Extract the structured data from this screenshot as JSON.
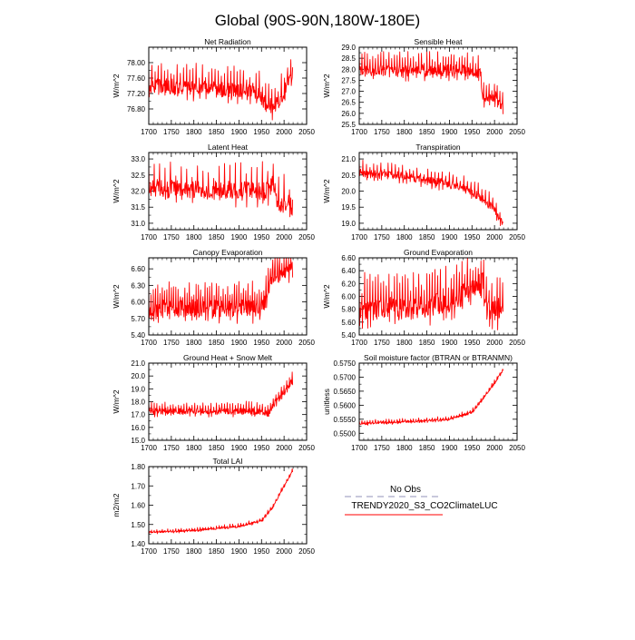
{
  "figure": {
    "title": "Global (90S-90N,180W-180E)"
  },
  "legend": {
    "entries": [
      {
        "label": "No Obs",
        "color": "#a7a7c7",
        "style": "dashed"
      },
      {
        "label": "TRENDY2020_S3_CO2ClimateLUC",
        "color": "#ff0000",
        "style": "solid"
      }
    ]
  },
  "chart_data": [
    {
      "type": "line",
      "title": "Net Radiation",
      "xlabel": "",
      "ylabel": "W/m^2",
      "xlim": [
        1700,
        2050
      ],
      "ylim": [
        76.4,
        78.4
      ],
      "xticks": [
        1700,
        1750,
        1800,
        1850,
        1900,
        1950,
        2000,
        2050
      ],
      "xtick_labels": [
        "1700",
        "1750",
        "1800",
        "1850",
        "1900",
        "1950",
        "2000",
        "2050"
      ],
      "yticks": [
        76.8,
        77.2,
        77.6,
        78.0
      ],
      "ytick_labels": [
        "76.80",
        "77.20",
        "77.60",
        "78.00"
      ],
      "series": [
        {
          "name": "TRENDY2020_S3_CO2ClimateLUC",
          "color": "#ff0000",
          "x_start": 1700,
          "x_end": 2019,
          "anchors": [
            [
              1700,
              77.45
            ],
            [
              1800,
              77.4
            ],
            [
              1900,
              77.3
            ],
            [
              1940,
              77.25
            ],
            [
              1960,
              77.0
            ],
            [
              1975,
              76.9
            ],
            [
              1990,
              77.05
            ],
            [
              2000,
              77.25
            ],
            [
              2010,
              77.6
            ],
            [
              2019,
              77.8
            ]
          ],
          "amplitude": 0.45,
          "cycle_years": 7
        }
      ]
    },
    {
      "type": "line",
      "title": "Sensible Heat",
      "xlabel": "",
      "ylabel": "W/m^2",
      "xlim": [
        1700,
        2050
      ],
      "ylim": [
        25.5,
        29.0
      ],
      "xticks": [
        1700,
        1750,
        1800,
        1850,
        1900,
        1950,
        2000,
        2050
      ],
      "xtick_labels": [
        "1700",
        "1750",
        "1800",
        "1850",
        "1900",
        "1950",
        "2000",
        "2050"
      ],
      "yticks": [
        25.5,
        26.0,
        26.5,
        27.0,
        27.5,
        28.0,
        28.5,
        29.0
      ],
      "ytick_labels": [
        "25.5",
        "26.0",
        "26.5",
        "27.0",
        "27.5",
        "28.0",
        "28.5",
        "29.0"
      ],
      "series": [
        {
          "name": "TRENDY2020_S3_CO2ClimateLUC",
          "color": "#ff0000",
          "x_start": 1700,
          "x_end": 2019,
          "anchors": [
            [
              1700,
              28.0
            ],
            [
              1950,
              28.0
            ],
            [
              1968,
              27.9
            ],
            [
              1975,
              26.8
            ],
            [
              1990,
              26.7
            ],
            [
              2005,
              26.8
            ],
            [
              2019,
              26.3
            ]
          ],
          "amplitude": 0.6,
          "cycle_years": 6
        }
      ]
    },
    {
      "type": "line",
      "title": "Latent Heat",
      "xlabel": "",
      "ylabel": "W/m^2",
      "xlim": [
        1700,
        2050
      ],
      "ylim": [
        30.8,
        33.2
      ],
      "xticks": [
        1700,
        1750,
        1800,
        1850,
        1900,
        1950,
        2000,
        2050
      ],
      "xtick_labels": [
        "1700",
        "1750",
        "1800",
        "1850",
        "1900",
        "1950",
        "2000",
        "2050"
      ],
      "yticks": [
        31.0,
        31.5,
        32.0,
        32.5,
        33.0
      ],
      "ytick_labels": [
        "31.0",
        "31.5",
        "32.0",
        "32.5",
        "33.0"
      ],
      "series": [
        {
          "name": "TRENDY2020_S3_CO2ClimateLUC",
          "color": "#ff0000",
          "x_start": 1700,
          "x_end": 2019,
          "anchors": [
            [
              1700,
              32.15
            ],
            [
              1950,
              32.05
            ],
            [
              1965,
              32.1
            ],
            [
              1975,
              32.25
            ],
            [
              1990,
              31.6
            ],
            [
              2005,
              31.75
            ],
            [
              2019,
              31.55
            ]
          ],
          "amplitude": 0.65,
          "cycle_years": 12
        }
      ]
    },
    {
      "type": "line",
      "title": "Transpiration",
      "xlabel": "",
      "ylabel": "W/m^2",
      "xlim": [
        1700,
        2050
      ],
      "ylim": [
        18.8,
        21.2
      ],
      "xticks": [
        1700,
        1750,
        1800,
        1850,
        1900,
        1950,
        2000,
        2050
      ],
      "xtick_labels": [
        "1700",
        "1750",
        "1800",
        "1850",
        "1900",
        "1950",
        "2000",
        "2050"
      ],
      "yticks": [
        19.0,
        19.5,
        20.0,
        20.5,
        21.0
      ],
      "ytick_labels": [
        "19.0",
        "19.5",
        "20.0",
        "20.5",
        "21.0"
      ],
      "series": [
        {
          "name": "TRENDY2020_S3_CO2ClimateLUC",
          "color": "#ff0000",
          "x_start": 1700,
          "x_end": 2019,
          "anchors": [
            [
              1700,
              20.6
            ],
            [
              1800,
              20.5
            ],
            [
              1850,
              20.35
            ],
            [
              1900,
              20.25
            ],
            [
              1950,
              20.0
            ],
            [
              1980,
              19.7
            ],
            [
              2000,
              19.45
            ],
            [
              2019,
              19.05
            ]
          ],
          "amplitude": 0.3,
          "cycle_years": 8
        }
      ]
    },
    {
      "type": "line",
      "title": "Canopy Evaporation",
      "xlabel": "",
      "ylabel": "W/m^2",
      "xlim": [
        1700,
        2050
      ],
      "ylim": [
        5.4,
        6.8
      ],
      "xticks": [
        1700,
        1750,
        1800,
        1850,
        1900,
        1950,
        2000,
        2050
      ],
      "xtick_labels": [
        "1700",
        "1750",
        "1800",
        "1850",
        "1900",
        "1950",
        "2000",
        "2050"
      ],
      "yticks": [
        5.4,
        5.7,
        6.0,
        6.3,
        6.6
      ],
      "ytick_labels": [
        "5.40",
        "5.70",
        "6.00",
        "6.30",
        "6.60"
      ],
      "series": [
        {
          "name": "TRENDY2020_S3_CO2ClimateLUC",
          "color": "#ff0000",
          "x_start": 1700,
          "x_end": 2019,
          "anchors": [
            [
              1700,
              5.92
            ],
            [
              1950,
              5.92
            ],
            [
              1960,
              6.05
            ],
            [
              1975,
              6.5
            ],
            [
              2000,
              6.55
            ],
            [
              2019,
              6.62
            ]
          ],
          "amplitude": 0.35,
          "cycle_years": 5
        }
      ]
    },
    {
      "type": "line",
      "title": "Ground Evaporation",
      "xlabel": "",
      "ylabel": "W/m^2",
      "xlim": [
        1700,
        2050
      ],
      "ylim": [
        5.4,
        6.6
      ],
      "xticks": [
        1700,
        1750,
        1800,
        1850,
        1900,
        1950,
        2000,
        2050
      ],
      "xtick_labels": [
        "1700",
        "1750",
        "1800",
        "1850",
        "1900",
        "1950",
        "2000",
        "2050"
      ],
      "yticks": [
        5.4,
        5.6,
        5.8,
        6.0,
        6.2,
        6.4,
        6.6
      ],
      "ytick_labels": [
        "5.40",
        "5.60",
        "5.80",
        "6.00",
        "6.20",
        "6.40",
        "6.60"
      ],
      "series": [
        {
          "name": "TRENDY2020_S3_CO2ClimateLUC",
          "color": "#ff0000",
          "x_start": 1700,
          "x_end": 2019,
          "anchors": [
            [
              1700,
              5.85
            ],
            [
              1800,
              5.85
            ],
            [
              1900,
              5.95
            ],
            [
              1950,
              6.15
            ],
            [
              1975,
              6.25
            ],
            [
              1985,
              5.85
            ],
            [
              2000,
              5.8
            ],
            [
              2019,
              5.9
            ]
          ],
          "amplitude": 0.4,
          "cycle_years": 6
        }
      ]
    },
    {
      "type": "line",
      "title": "Ground Heat + Snow Melt",
      "xlabel": "",
      "ylabel": "W/m^2",
      "xlim": [
        1700,
        2050
      ],
      "ylim": [
        15.0,
        21.0
      ],
      "xticks": [
        1700,
        1750,
        1800,
        1850,
        1900,
        1950,
        2000,
        2050
      ],
      "xtick_labels": [
        "1700",
        "1750",
        "1800",
        "1850",
        "1900",
        "1950",
        "2000",
        "2050"
      ],
      "yticks": [
        15.0,
        16.0,
        17.0,
        18.0,
        19.0,
        20.0,
        21.0
      ],
      "ytick_labels": [
        "15.0",
        "16.0",
        "17.0",
        "18.0",
        "19.0",
        "20.0",
        "21.0"
      ],
      "series": [
        {
          "name": "TRENDY2020_S3_CO2ClimateLUC",
          "color": "#ff0000",
          "x_start": 1700,
          "x_end": 2019,
          "anchors": [
            [
              1700,
              17.3
            ],
            [
              1950,
              17.3
            ],
            [
              1965,
              17.1
            ],
            [
              1980,
              18.0
            ],
            [
              2000,
              18.8
            ],
            [
              2019,
              19.7
            ]
          ],
          "amplitude": 0.55,
          "cycle_years": 6
        }
      ]
    },
    {
      "type": "line",
      "title": "Soil moisture factor (BTRAN or BTRANMN)",
      "xlabel": "",
      "ylabel": "unitless",
      "xlim": [
        1700,
        2050
      ],
      "ylim": [
        0.5475,
        0.575
      ],
      "xticks": [
        1700,
        1750,
        1800,
        1850,
        1900,
        1950,
        2000,
        2050
      ],
      "xtick_labels": [
        "1700",
        "1750",
        "1800",
        "1850",
        "1900",
        "1950",
        "2000",
        "2050"
      ],
      "yticks": [
        0.55,
        0.555,
        0.56,
        0.565,
        0.57,
        0.575
      ],
      "ytick_labels": [
        "0.5500",
        "0.5550",
        "0.5600",
        "0.5650",
        "0.5700",
        "0.5750"
      ],
      "series": [
        {
          "name": "TRENDY2020_S3_CO2ClimateLUC",
          "color": "#ff0000",
          "x_start": 1700,
          "x_end": 2019,
          "anchors": [
            [
              1700,
              0.5535
            ],
            [
              1850,
              0.5545
            ],
            [
              1900,
              0.555
            ],
            [
              1950,
              0.5575
            ],
            [
              1980,
              0.5635
            ],
            [
              2000,
              0.568
            ],
            [
              2019,
              0.5725
            ]
          ],
          "amplitude": 0.0009,
          "cycle_years": 6
        }
      ]
    },
    {
      "type": "line",
      "title": "Total LAI",
      "xlabel": "",
      "ylabel": "m2/m2",
      "xlim": [
        1700,
        2050
      ],
      "ylim": [
        1.4,
        1.8
      ],
      "xticks": [
        1700,
        1750,
        1800,
        1850,
        1900,
        1950,
        2000,
        2050
      ],
      "xtick_labels": [
        "1700",
        "1750",
        "1800",
        "1850",
        "1900",
        "1950",
        "2000",
        "2050"
      ],
      "yticks": [
        1.4,
        1.5,
        1.6,
        1.7,
        1.8
      ],
      "ytick_labels": [
        "1.40",
        "1.50",
        "1.60",
        "1.70",
        "1.80"
      ],
      "series": [
        {
          "name": "TRENDY2020_S3_CO2ClimateLUC",
          "color": "#ff0000",
          "x_start": 1700,
          "x_end": 2019,
          "anchors": [
            [
              1700,
              1.46
            ],
            [
              1800,
              1.47
            ],
            [
              1900,
              1.49
            ],
            [
              1950,
              1.52
            ],
            [
              1975,
              1.59
            ],
            [
              2000,
              1.7
            ],
            [
              2019,
              1.78
            ]
          ],
          "amplitude": 0.012,
          "cycle_years": 6
        }
      ]
    }
  ]
}
